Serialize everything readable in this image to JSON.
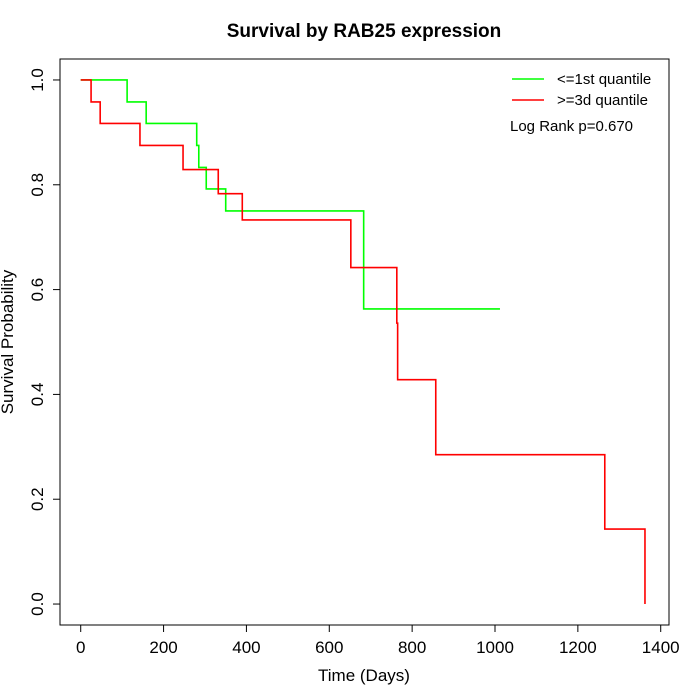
{
  "chart_data": {
    "type": "line",
    "title": "Survival by RAB25 expression",
    "xlabel": "Time (Days)",
    "ylabel": "Survival Probability",
    "xlim": [
      -50,
      1420
    ],
    "ylim": [
      -0.04,
      1.04
    ],
    "x_ticks": [
      0,
      200,
      400,
      600,
      800,
      1000,
      1200,
      1400
    ],
    "y_ticks": [
      0.0,
      0.2,
      0.4,
      0.6,
      0.8,
      1.0
    ],
    "x_tick_labels": [
      "0",
      "200",
      "400",
      "600",
      "800",
      "1000",
      "1200",
      "1400"
    ],
    "y_tick_labels": [
      "0.0",
      "0.2",
      "0.4",
      "0.6",
      "0.8",
      "1.0"
    ],
    "legend_position": "top-right",
    "annotation": "Log Rank p=0.670",
    "series": [
      {
        "name": "<=1st quantile",
        "color": "#00ff00",
        "steps": [
          [
            0,
            1.0
          ],
          [
            112,
            0.958
          ],
          [
            158,
            0.917
          ],
          [
            280,
            0.875
          ],
          [
            285,
            0.833
          ],
          [
            303,
            0.792
          ],
          [
            350,
            0.75
          ],
          [
            683,
            0.563
          ],
          [
            1012,
            0.563
          ]
        ]
      },
      {
        "name": ">=3d quantile",
        "color": "#ff0000",
        "steps": [
          [
            0,
            1.0
          ],
          [
            25,
            0.958
          ],
          [
            47,
            0.917
          ],
          [
            143,
            0.875
          ],
          [
            247,
            0.829
          ],
          [
            332,
            0.783
          ],
          [
            390,
            0.733
          ],
          [
            652,
            0.642
          ],
          [
            763,
            0.536
          ],
          [
            765,
            0.428
          ],
          [
            857,
            0.285
          ],
          [
            1265,
            0.143
          ],
          [
            1362,
            0.0
          ]
        ]
      }
    ]
  }
}
